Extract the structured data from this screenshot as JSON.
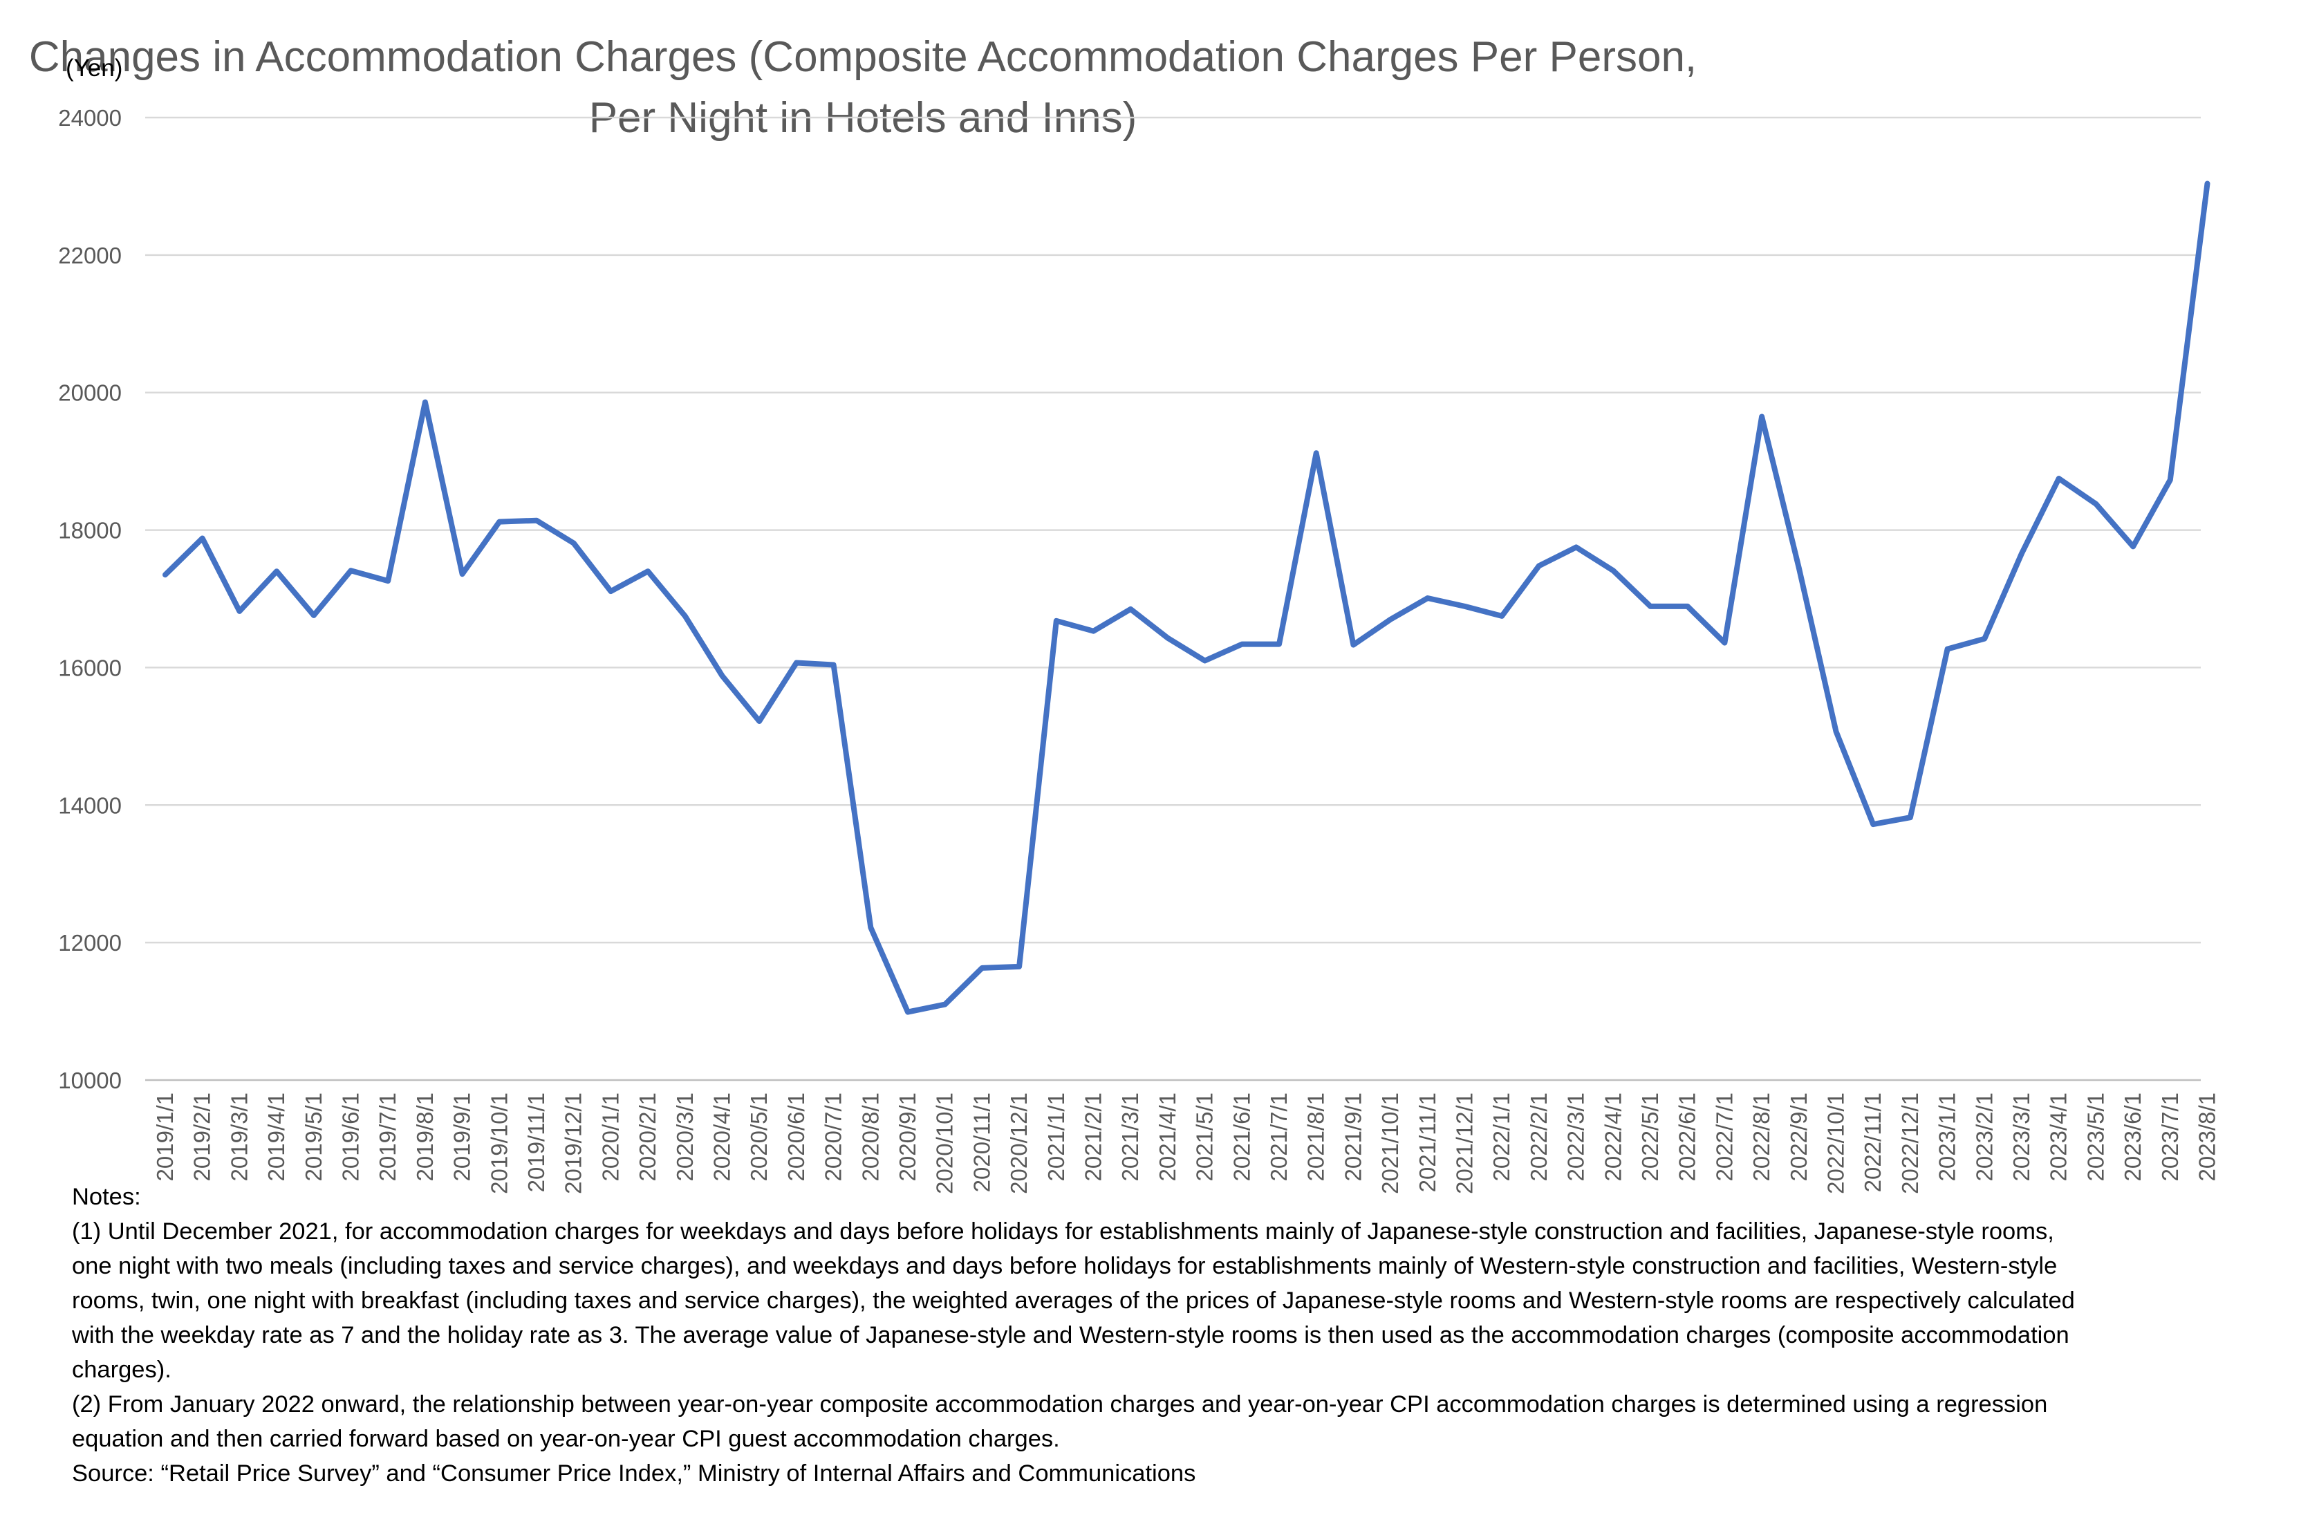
{
  "chart_data": {
    "type": "line",
    "title_lines": [
      "Changes in Accommodation Charges (Composite Accommodation Charges Per Person,",
      "Per Night in Hotels and Inns)"
    ],
    "ylabel": "(Yen)",
    "xlabel": "",
    "ylim": [
      10000,
      24000
    ],
    "yticks": [
      "10000",
      "12000",
      "14000",
      "16000",
      "18000",
      "20000",
      "22000",
      "24000"
    ],
    "grid": true,
    "line_color": "#4472C4",
    "categories": [
      "2019/1/1",
      "2019/2/1",
      "2019/3/1",
      "2019/4/1",
      "2019/5/1",
      "2019/6/1",
      "2019/7/1",
      "2019/8/1",
      "2019/9/1",
      "2019/10/1",
      "2019/11/1",
      "2019/12/1",
      "2020/1/1",
      "2020/2/1",
      "2020/3/1",
      "2020/4/1",
      "2020/5/1",
      "2020/6/1",
      "2020/7/1",
      "2020/8/1",
      "2020/9/1",
      "2020/10/1",
      "2020/11/1",
      "2020/12/1",
      "2021/1/1",
      "2021/2/1",
      "2021/3/1",
      "2021/4/1",
      "2021/5/1",
      "2021/6/1",
      "2021/7/1",
      "2021/8/1",
      "2021/9/1",
      "2021/10/1",
      "2021/11/1",
      "2021/12/1",
      "2022/1/1",
      "2022/2/1",
      "2022/3/1",
      "2022/4/1",
      "2022/5/1",
      "2022/6/1",
      "2022/7/1",
      "2022/8/1",
      "2022/9/1",
      "2022/10/1",
      "2022/11/1",
      "2022/12/1",
      "2023/1/1",
      "2023/2/1",
      "2023/3/1",
      "2023/4/1",
      "2023/5/1",
      "2023/6/1",
      "2023/7/1",
      "2023/8/1"
    ],
    "values": [
      17350,
      17880,
      16820,
      17400,
      16760,
      17410,
      17260,
      19860,
      17360,
      18120,
      18140,
      17810,
      17110,
      17400,
      16750,
      15880,
      15220,
      16070,
      16040,
      12220,
      10990,
      11100,
      11630,
      11650,
      16680,
      16530,
      16850,
      16430,
      16100,
      16340,
      16340,
      19120,
      16330,
      16700,
      17010,
      16890,
      16750,
      17480,
      17750,
      17410,
      16890,
      16890,
      16360,
      19650,
      17450,
      15070,
      13720,
      13820,
      16270,
      16420,
      17660,
      18750,
      18380,
      17760,
      18730,
      23040
    ]
  },
  "notes": {
    "heading": "Notes:",
    "lines": [
      "(1) Until December 2021, for accommodation charges for weekdays and days before holidays for establishments mainly of Japanese-style construction and facilities, Japanese-style rooms,",
      "one night with two meals (including taxes and service charges), and weekdays and days before holidays for establishments mainly of Western-style construction and facilities, Western-style",
      "rooms, twin, one night with breakfast (including taxes and service charges), the weighted averages of the prices of Japanese-style rooms and Western-style rooms are respectively calculated",
      "with the weekday rate as 7 and the holiday rate as 3. The average value of Japanese-style and Western-style rooms is then used as the accommodation charges (composite accommodation",
      "charges).",
      "(2) From January 2022 onward, the relationship between year-on-year composite accommodation charges and year-on-year CPI accommodation charges is determined using a regression",
      "equation and then carried forward based on year-on-year CPI guest accommodation charges.",
      "Source: “Retail Price Survey” and “Consumer Price Index,” Ministry of Internal Affairs and Communications"
    ]
  }
}
